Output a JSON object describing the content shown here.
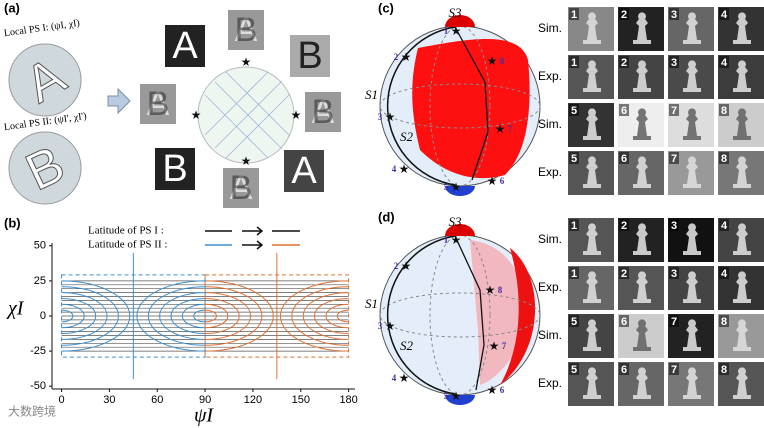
{
  "panel_a": {
    "label": "(a)",
    "ps1": "Local PS I: (ψI, χI)",
    "ps2": "Local PS II: (ψI', χI')",
    "letters": [
      "A",
      "B",
      "A",
      "B"
    ],
    "overlaps": [
      [
        "A",
        "B"
      ],
      [
        "A",
        "B"
      ],
      [
        "A",
        "B"
      ],
      [
        "A",
        "B"
      ]
    ]
  },
  "panel_b": {
    "label": "(b)",
    "legend": [
      "Latitude of PS I :",
      "Latitude of PS II :"
    ],
    "ylabel": "χI",
    "xlabel": "ψI",
    "xlim": [
      -6,
      184
    ],
    "ylim": [
      -52,
      52
    ],
    "xticks": [
      0,
      30,
      60,
      90,
      120,
      150,
      180
    ],
    "yticks": [
      50,
      25,
      0,
      -25,
      -50
    ]
  },
  "panel_c": {
    "label": "(c)",
    "axes": [
      "S3",
      "S1",
      "S2"
    ],
    "points": [
      "1",
      "2",
      "3",
      "4",
      "5",
      "6",
      "7",
      "8"
    ],
    "rows": [
      {
        "label": "Sim.",
        "tiles": [
          "1",
          "2",
          "3",
          "4"
        ]
      },
      {
        "label": "Exp.",
        "tiles": [
          "1",
          "2",
          "3",
          "4"
        ]
      },
      {
        "label": "Sim.",
        "tiles": [
          "5",
          "6",
          "7",
          "8"
        ]
      },
      {
        "label": "Exp.",
        "tiles": [
          "5",
          "6",
          "7",
          "8"
        ]
      }
    ]
  },
  "panel_d": {
    "label": "(d)",
    "axes": [
      "S3",
      "S1",
      "S2"
    ],
    "points": [
      "1",
      "2",
      "3",
      "4",
      "5",
      "6",
      "7",
      "8"
    ],
    "rows": [
      {
        "label": "Sim.",
        "tiles": [
          "1",
          "2",
          "3",
          "4"
        ]
      },
      {
        "label": "Exp.",
        "tiles": [
          "1",
          "2",
          "3",
          "4"
        ]
      },
      {
        "label": "Sim.",
        "tiles": [
          "5",
          "6",
          "7",
          "8"
        ]
      },
      {
        "label": "Exp.",
        "tiles": [
          "5",
          "6",
          "7",
          "8"
        ]
      }
    ]
  },
  "watermark": "大数跨境"
}
